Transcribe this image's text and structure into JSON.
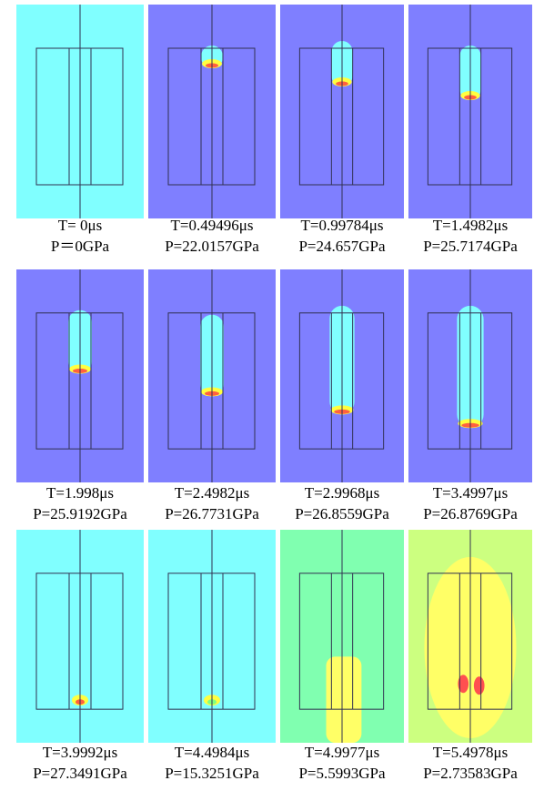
{
  "panels": [
    {
      "time": "T= 0μs",
      "pressure": "P＝0GPa"
    },
    {
      "time": "T=0.49496μs",
      "pressure": "P=22.0157GPa"
    },
    {
      "time": "T=0.99784μs",
      "pressure": "P=24.657GPa"
    },
    {
      "time": "T=1.4982μs",
      "pressure": "P=25.7174GPa"
    },
    {
      "time": "T=1.998μs",
      "pressure": "P=25.9192GPa"
    },
    {
      "time": "T=2.4982μs",
      "pressure": "P=26.7731GPa"
    },
    {
      "time": "T=2.9968μs",
      "pressure": "P=26.8559GPa"
    },
    {
      "time": "T=3.4997μs",
      "pressure": "P=26.8769GPa"
    },
    {
      "time": "T=3.9992μs",
      "pressure": "P=27.3491GPa"
    },
    {
      "time": "T=4.4984μs",
      "pressure": "P=15.3251GPa"
    },
    {
      "time": "T=4.9977μs",
      "pressure": "P=5.5993GPa"
    },
    {
      "time": "T=5.4978μs",
      "pressure": "P=2.73583GPa"
    }
  ]
}
